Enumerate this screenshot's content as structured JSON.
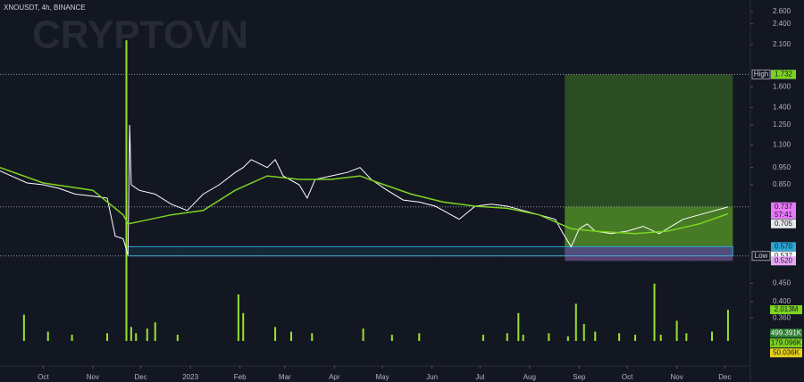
{
  "chart_data": {
    "type": "line",
    "title": "XNOUSDT, 4h, BINANCE",
    "watermark": "CRYPTOVN",
    "log_scale": true,
    "xlim": [
      -27,
      442
    ],
    "xticks": [
      {
        "value": 0,
        "label": "Oct"
      },
      {
        "value": 31,
        "label": "Nov"
      },
      {
        "value": 61,
        "label": "Dec"
      },
      {
        "value": 92,
        "label": "2023"
      },
      {
        "value": 123,
        "label": "Feb"
      },
      {
        "value": 151,
        "label": "Mar"
      },
      {
        "value": 182,
        "label": "Apr"
      },
      {
        "value": 212,
        "label": "May"
      },
      {
        "value": 243,
        "label": "Jun"
      },
      {
        "value": 273,
        "label": "Jul"
      },
      {
        "value": 304,
        "label": "Aug"
      },
      {
        "value": 335,
        "label": "Sep"
      },
      {
        "value": 365,
        "label": "Oct"
      },
      {
        "value": 396,
        "label": "Nov"
      },
      {
        "value": 426,
        "label": "Dec"
      }
    ],
    "ylim": [
      0.264,
      2.8
    ],
    "yticks": [
      {
        "value": 2.6,
        "label": "2.600"
      },
      {
        "value": 2.4,
        "label": "2.400"
      },
      {
        "value": 2.1,
        "label": "2.100"
      },
      {
        "value": 1.6,
        "label": "1.600"
      },
      {
        "value": 1.4,
        "label": "1.400"
      },
      {
        "value": 1.25,
        "label": "1.250"
      },
      {
        "value": 1.1,
        "label": "1.100"
      },
      {
        "value": 0.95,
        "label": "0.950"
      },
      {
        "value": 0.85,
        "label": "0.850"
      },
      {
        "value": 0.45,
        "label": "0.450"
      },
      {
        "value": 0.4,
        "label": "0.400"
      },
      {
        "value": 0.36,
        "label": "0.360"
      }
    ],
    "series": [
      {
        "color": "#ffffff",
        "x": [
          -27,
          -20,
          -10,
          0,
          10,
          20,
          31,
          40,
          45,
          50,
          53,
          54,
          55,
          60,
          70,
          80,
          90,
          100,
          110,
          120,
          125,
          130,
          140,
          145,
          150,
          160,
          165,
          170,
          180,
          190,
          198,
          205,
          215,
          225,
          235,
          245,
          250,
          260,
          270,
          280,
          290,
          300,
          310,
          320,
          325,
          330,
          335,
          340,
          345,
          355,
          365,
          375,
          385,
          390,
          400,
          410,
          420,
          425,
          428
        ],
        "values": [
          0.93,
          0.9,
          0.86,
          0.85,
          0.83,
          0.8,
          0.79,
          0.78,
          0.61,
          0.6,
          0.54,
          1.25,
          0.85,
          0.82,
          0.8,
          0.75,
          0.72,
          0.8,
          0.85,
          0.92,
          0.95,
          1.0,
          0.95,
          1.0,
          0.9,
          0.85,
          0.78,
          0.88,
          0.9,
          0.92,
          0.95,
          0.88,
          0.82,
          0.77,
          0.76,
          0.74,
          0.72,
          0.68,
          0.74,
          0.75,
          0.74,
          0.72,
          0.7,
          0.68,
          0.62,
          0.57,
          0.64,
          0.66,
          0.63,
          0.62,
          0.63,
          0.65,
          0.62,
          0.64,
          0.68,
          0.7,
          0.72,
          0.73,
          0.737
        ]
      },
      {
        "color": "#7ed321",
        "x": [
          -27,
          0,
          31,
          50,
          53,
          60,
          80,
          100,
          120,
          140,
          160,
          180,
          198,
          210,
          230,
          250,
          270,
          290,
          310,
          330,
          345,
          370,
          390,
          410,
          428
        ],
        "values": [
          0.95,
          0.86,
          0.82,
          0.7,
          0.66,
          0.67,
          0.7,
          0.72,
          0.82,
          0.9,
          0.88,
          0.88,
          0.9,
          0.86,
          0.8,
          0.76,
          0.74,
          0.73,
          0.7,
          0.64,
          0.63,
          0.62,
          0.63,
          0.66,
          0.705
        ]
      }
    ],
    "volume": {
      "color": "#9be22d",
      "ylim": [
        0,
        22
      ],
      "x": [
        -12,
        3,
        18,
        40,
        52,
        55,
        58,
        65,
        70,
        84,
        122,
        125,
        145,
        155,
        168,
        200,
        218,
        235,
        275,
        290,
        297,
        300,
        316,
        328,
        333,
        338,
        345,
        360,
        370,
        382,
        386,
        396,
        402,
        418,
        428
      ],
      "values": [
        1.7,
        0.6,
        0.4,
        0.5,
        19.4,
        0.9,
        0.5,
        0.8,
        1.2,
        0.4,
        3.0,
        1.8,
        0.9,
        0.6,
        0.5,
        0.8,
        0.4,
        0.5,
        0.4,
        0.5,
        1.8,
        0.4,
        0.5,
        0.3,
        2.4,
        1.1,
        0.6,
        0.5,
        0.4,
        3.7,
        0.4,
        1.3,
        0.5,
        0.6,
        2.013
      ],
      "labels": [
        {
          "value": 2.013,
          "label": "2.013M",
          "color": "#7ed321"
        },
        {
          "value": 0.499391,
          "label": "499.391K",
          "color": "#2e7d32"
        },
        {
          "value": 0.179096,
          "label": "179.096K",
          "color": "#7ed321"
        },
        {
          "value": 0.050036,
          "label": "50.036K",
          "color": "#e6d21c"
        }
      ]
    },
    "levels": [
      {
        "label": "High",
        "value": 1.732
      },
      {
        "label": "Low",
        "value": 0.537
      }
    ],
    "markers": [
      {
        "value": 1.732,
        "label": "1.732",
        "color": "#7ed321"
      },
      {
        "value": 0.737,
        "label": "0.737",
        "color": "#e879f9"
      },
      {
        "value": 0.705,
        "label": "0.705",
        "color": "#e8e8e8"
      },
      {
        "value": 0.57,
        "label": "0.570",
        "color": "#2aa8d8"
      },
      {
        "value": 0.52,
        "label": "0.520",
        "color": "#e9a6f5"
      }
    ],
    "countdown": "57:41",
    "position": {
      "x": [
        326,
        431
      ]
    },
    "zone": {
      "x": [
        52,
        431
      ]
    }
  }
}
